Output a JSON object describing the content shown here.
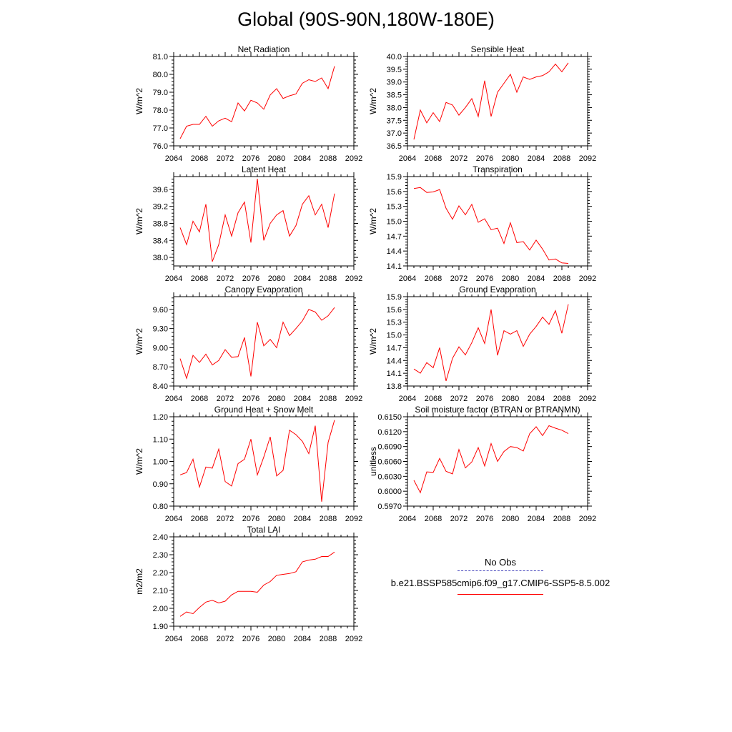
{
  "title": "Global (90S-90N,180W-180E)",
  "line_color": "#ff0000",
  "legend": {
    "obs_label": "No Obs",
    "obs_color": "#3a3ab8",
    "model_label": "b.e21.BSSP585cmip6.f09_g17.CMIP6-SSP5-8.5.002",
    "model_color": "#ff0000"
  },
  "chart_data": [
    {
      "type": "line",
      "title": "Net Radiation",
      "ylabel": "W/m^2",
      "xlim": [
        2064,
        2092
      ],
      "xticks": [
        "2064",
        "2068",
        "2072",
        "2076",
        "2080",
        "2084",
        "2088",
        "2092"
      ],
      "ylim": [
        76.0,
        81.0
      ],
      "yticks": [
        "76.0",
        "77.0",
        "78.0",
        "79.0",
        "80.0",
        "81.0"
      ],
      "series": [
        {
          "x": [
            2065,
            2066,
            2067,
            2068,
            2069,
            2070,
            2071,
            2072,
            2073,
            2074,
            2075,
            2076,
            2077,
            2078,
            2079,
            2080,
            2081,
            2082,
            2083,
            2084,
            2085,
            2086,
            2087,
            2088,
            2089
          ],
          "y": [
            76.4,
            77.1,
            77.2,
            77.2,
            77.65,
            77.1,
            77.4,
            77.55,
            77.35,
            78.4,
            77.95,
            78.55,
            78.4,
            78.05,
            78.85,
            79.2,
            78.65,
            78.8,
            78.9,
            79.5,
            79.7,
            79.6,
            79.8,
            79.2,
            80.45
          ]
        }
      ]
    },
    {
      "type": "line",
      "title": "Sensible Heat",
      "ylabel": "W/m^2",
      "xlim": [
        2064,
        2092
      ],
      "xticks": [
        "2064",
        "2068",
        "2072",
        "2076",
        "2080",
        "2084",
        "2088",
        "2092"
      ],
      "ylim": [
        36.5,
        40.0
      ],
      "yticks": [
        "36.5",
        "37.0",
        "37.5",
        "38.0",
        "38.5",
        "39.0",
        "39.5",
        "40.0"
      ],
      "series": [
        {
          "x": [
            2065,
            2066,
            2067,
            2068,
            2069,
            2070,
            2071,
            2072,
            2073,
            2074,
            2075,
            2076,
            2077,
            2078,
            2079,
            2080,
            2081,
            2082,
            2083,
            2084,
            2085,
            2086,
            2087,
            2088,
            2089
          ],
          "y": [
            36.75,
            37.9,
            37.4,
            37.8,
            37.45,
            38.2,
            38.1,
            37.7,
            38.0,
            38.35,
            37.65,
            39.05,
            37.65,
            38.6,
            38.95,
            39.3,
            38.6,
            39.2,
            39.1,
            39.2,
            39.25,
            39.4,
            39.7,
            39.4,
            39.75
          ]
        }
      ]
    },
    {
      "type": "line",
      "title": "Latent Heat",
      "ylabel": "W/m^2",
      "xlim": [
        2064,
        2092
      ],
      "xticks": [
        "2064",
        "2068",
        "2072",
        "2076",
        "2080",
        "2084",
        "2088",
        "2092"
      ],
      "ylim": [
        37.8,
        39.9
      ],
      "yticks": [
        "38.0",
        "38.4",
        "38.8",
        "39.2",
        "39.6"
      ],
      "yticks_values": [
        38.0,
        38.4,
        38.8,
        39.2,
        39.6
      ],
      "series": [
        {
          "x": [
            2065,
            2066,
            2067,
            2068,
            2069,
            2070,
            2071,
            2072,
            2073,
            2074,
            2075,
            2076,
            2077,
            2078,
            2079,
            2080,
            2081,
            2082,
            2083,
            2084,
            2085,
            2086,
            2087,
            2088,
            2089
          ],
          "y": [
            38.7,
            38.3,
            38.85,
            38.6,
            39.25,
            37.9,
            38.3,
            39.0,
            38.5,
            39.05,
            39.3,
            38.35,
            39.85,
            38.4,
            38.8,
            39.0,
            39.1,
            38.5,
            38.75,
            39.25,
            39.45,
            39.0,
            39.25,
            38.7,
            39.5
          ]
        }
      ]
    },
    {
      "type": "line",
      "title": "Transpiration",
      "ylabel": "W/m^2",
      "xlim": [
        2064,
        2092
      ],
      "xticks": [
        "2064",
        "2068",
        "2072",
        "2076",
        "2080",
        "2084",
        "2088",
        "2092"
      ],
      "ylim": [
        14.1,
        15.9
      ],
      "yticks": [
        "14.1",
        "14.4",
        "14.7",
        "15.0",
        "15.3",
        "15.6",
        "15.9"
      ],
      "series": [
        {
          "x": [
            2065,
            2066,
            2067,
            2068,
            2069,
            2070,
            2071,
            2072,
            2073,
            2074,
            2075,
            2076,
            2077,
            2078,
            2079,
            2080,
            2081,
            2082,
            2083,
            2084,
            2085,
            2086,
            2087,
            2088,
            2089
          ],
          "y": [
            15.66,
            15.68,
            15.58,
            15.59,
            15.64,
            15.26,
            15.04,
            15.31,
            15.13,
            15.34,
            14.98,
            15.05,
            14.83,
            14.86,
            14.55,
            14.97,
            14.57,
            14.59,
            14.42,
            14.62,
            14.44,
            14.22,
            14.24,
            14.16,
            14.15
          ]
        }
      ]
    },
    {
      "type": "line",
      "title": "Canopy Evaporation",
      "ylabel": "W/m^2",
      "xlim": [
        2064,
        2092
      ],
      "xticks": [
        "2064",
        "2068",
        "2072",
        "2076",
        "2080",
        "2084",
        "2088",
        "2092"
      ],
      "ylim": [
        8.4,
        9.8
      ],
      "yticks": [
        "8.40",
        "8.70",
        "9.00",
        "9.30",
        "9.60"
      ],
      "yticks_values": [
        8.4,
        8.7,
        9.0,
        9.3,
        9.6
      ],
      "series": [
        {
          "x": [
            2065,
            2066,
            2067,
            2068,
            2069,
            2070,
            2071,
            2072,
            2073,
            2074,
            2075,
            2076,
            2077,
            2078,
            2079,
            2080,
            2081,
            2082,
            2083,
            2084,
            2085,
            2086,
            2087,
            2088,
            2089
          ],
          "y": [
            8.83,
            8.52,
            8.88,
            8.77,
            8.9,
            8.73,
            8.8,
            8.97,
            8.85,
            8.86,
            9.16,
            8.55,
            9.4,
            9.03,
            9.13,
            9.0,
            9.4,
            9.19,
            9.3,
            9.42,
            9.6,
            9.56,
            9.43,
            9.5,
            9.63
          ]
        }
      ]
    },
    {
      "type": "line",
      "title": "Ground Evaporation",
      "ylabel": "W/m^2",
      "xlim": [
        2064,
        2092
      ],
      "xticks": [
        "2064",
        "2068",
        "2072",
        "2076",
        "2080",
        "2084",
        "2088",
        "2092"
      ],
      "ylim": [
        13.8,
        15.9
      ],
      "yticks": [
        "13.8",
        "14.1",
        "14.4",
        "14.7",
        "15.0",
        "15.3",
        "15.6",
        "15.9"
      ],
      "series": [
        {
          "x": [
            2065,
            2066,
            2067,
            2068,
            2069,
            2070,
            2071,
            2072,
            2073,
            2074,
            2075,
            2076,
            2077,
            2078,
            2079,
            2080,
            2081,
            2082,
            2083,
            2084,
            2085,
            2086,
            2087,
            2088,
            2089
          ],
          "y": [
            14.2,
            14.1,
            14.35,
            14.23,
            14.7,
            13.92,
            14.45,
            14.72,
            14.53,
            14.82,
            15.17,
            14.8,
            15.6,
            14.52,
            15.1,
            15.02,
            15.1,
            14.73,
            15.02,
            15.2,
            15.42,
            15.25,
            15.57,
            15.04,
            15.72
          ]
        }
      ]
    },
    {
      "type": "line",
      "title": "Ground Heat + Snow Melt",
      "ylabel": "W/m^2",
      "xlim": [
        2064,
        2092
      ],
      "xticks": [
        "2064",
        "2068",
        "2072",
        "2076",
        "2080",
        "2084",
        "2088",
        "2092"
      ],
      "ylim": [
        0.8,
        1.2
      ],
      "yticks": [
        "0.80",
        "0.90",
        "1.00",
        "1.10",
        "1.20"
      ],
      "series": [
        {
          "x": [
            2065,
            2066,
            2067,
            2068,
            2069,
            2070,
            2071,
            2072,
            2073,
            2074,
            2075,
            2076,
            2077,
            2078,
            2079,
            2080,
            2081,
            2082,
            2083,
            2084,
            2085,
            2086,
            2087,
            2088,
            2089
          ],
          "y": [
            0.94,
            0.95,
            1.01,
            0.885,
            0.975,
            0.97,
            1.055,
            0.91,
            0.89,
            0.99,
            1.01,
            1.1,
            0.94,
            1.02,
            1.11,
            0.935,
            0.96,
            1.14,
            1.12,
            1.09,
            1.035,
            1.16,
            0.82,
            1.085,
            1.185
          ]
        }
      ]
    },
    {
      "type": "line",
      "title": "Soil moisture factor (BTRAN or BTRANMN)",
      "ylabel": "unitless",
      "xlim": [
        2064,
        2092
      ],
      "xticks": [
        "2064",
        "2068",
        "2072",
        "2076",
        "2080",
        "2084",
        "2088",
        "2092"
      ],
      "ylim": [
        0.597,
        0.615
      ],
      "yticks": [
        "0.5970",
        "0.6000",
        "0.6030",
        "0.6060",
        "0.6090",
        "0.6120",
        "0.6150"
      ],
      "series": [
        {
          "x": [
            2065,
            2066,
            2067,
            2068,
            2069,
            2070,
            2071,
            2072,
            2073,
            2074,
            2075,
            2076,
            2077,
            2078,
            2079,
            2080,
            2081,
            2082,
            2083,
            2084,
            2085,
            2086,
            2087,
            2088,
            2089
          ],
          "y": [
            0.6022,
            0.5997,
            0.6039,
            0.6038,
            0.6066,
            0.604,
            0.6035,
            0.6084,
            0.6047,
            0.6059,
            0.6088,
            0.6051,
            0.6096,
            0.606,
            0.608,
            0.609,
            0.6088,
            0.6081,
            0.6116,
            0.613,
            0.6112,
            0.6132,
            0.6127,
            0.6123,
            0.6116
          ]
        }
      ]
    },
    {
      "type": "line",
      "title": "Total LAI",
      "ylabel": "m2/m2",
      "xlim": [
        2064,
        2092
      ],
      "xticks": [
        "2064",
        "2068",
        "2072",
        "2076",
        "2080",
        "2084",
        "2088",
        "2092"
      ],
      "ylim": [
        1.9,
        2.4
      ],
      "yticks": [
        "1.90",
        "2.00",
        "2.10",
        "2.20",
        "2.30",
        "2.40"
      ],
      "series": [
        {
          "x": [
            2065,
            2066,
            2067,
            2068,
            2069,
            2070,
            2071,
            2072,
            2073,
            2074,
            2075,
            2076,
            2077,
            2078,
            2079,
            2080,
            2081,
            2082,
            2083,
            2084,
            2085,
            2086,
            2087,
            2088,
            2089
          ],
          "y": [
            1.955,
            1.98,
            1.97,
            2.005,
            2.035,
            2.045,
            2.03,
            2.04,
            2.075,
            2.095,
            2.095,
            2.095,
            2.09,
            2.13,
            2.15,
            2.185,
            2.19,
            2.195,
            2.205,
            2.26,
            2.27,
            2.275,
            2.29,
            2.29,
            2.315
          ]
        }
      ]
    }
  ]
}
